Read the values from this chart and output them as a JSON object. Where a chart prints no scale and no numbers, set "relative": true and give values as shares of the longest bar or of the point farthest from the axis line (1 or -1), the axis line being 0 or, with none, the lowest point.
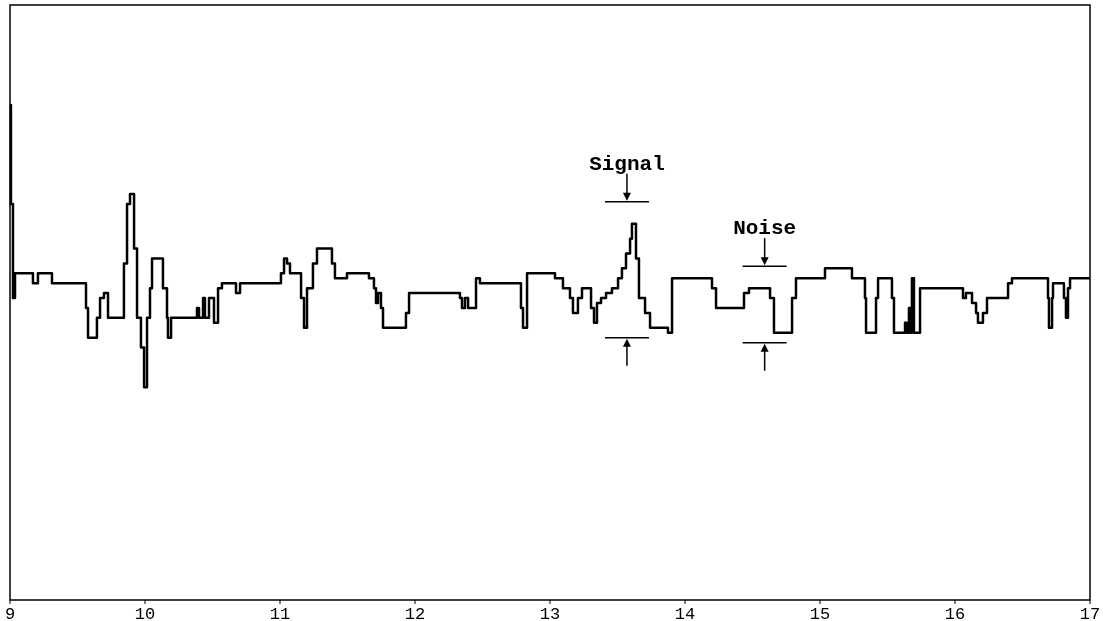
{
  "chart_data": {
    "type": "step",
    "relative": true,
    "xlim": [
      9,
      17
    ],
    "xticks": [
      9,
      10,
      11,
      12,
      13,
      14,
      15,
      16,
      17
    ],
    "grid": false,
    "marker": "none",
    "line_style": "solid",
    "annotations": [
      {
        "text": "Signal",
        "x": 13.57,
        "y": 0.76
      },
      {
        "text": "Noise",
        "x": 14.59,
        "y": 0.63
      }
    ],
    "series": [
      {
        "color": "#000000",
        "x": [
          9.0,
          9.007,
          9.022,
          9.037,
          9.148,
          9.17,
          9.207,
          9.296,
          9.311,
          9.563,
          9.578,
          9.644,
          9.667,
          9.696,
          9.726,
          9.844,
          9.867,
          9.889,
          9.919,
          9.941,
          9.97,
          9.993,
          10.015,
          10.037,
          10.052,
          10.133,
          10.163,
          10.17,
          10.193,
          10.385,
          10.4,
          10.43,
          10.444,
          10.474,
          10.511,
          10.541,
          10.57,
          10.674,
          10.704,
          11.007,
          11.03,
          11.052,
          11.074,
          11.156,
          11.178,
          11.2,
          11.244,
          11.274,
          11.319,
          11.385,
          11.407,
          11.467,
          11.496,
          11.659,
          11.696,
          11.711,
          11.726,
          11.748,
          11.763,
          11.933,
          11.956,
          12.333,
          12.348,
          12.37,
          12.393,
          12.452,
          12.481,
          12.785,
          12.8,
          12.83,
          13.037,
          13.096,
          13.148,
          13.17,
          13.207,
          13.237,
          13.304,
          13.326,
          13.348,
          13.378,
          13.4,
          13.415,
          13.459,
          13.504,
          13.533,
          13.563,
          13.593,
          13.607,
          13.637,
          13.659,
          13.704,
          13.741,
          13.874,
          13.904,
          14.2,
          14.23,
          14.437,
          14.474,
          14.63,
          14.659,
          14.793,
          14.822,
          15.037,
          15.237,
          15.333,
          15.341,
          15.415,
          15.43,
          15.533,
          15.548,
          15.615,
          15.63,
          15.644,
          15.659,
          15.674,
          15.681,
          15.696,
          15.741,
          16.059,
          16.081,
          16.126,
          16.156,
          16.17,
          16.207,
          16.237,
          16.393,
          16.422,
          16.689,
          16.696,
          16.719,
          16.726,
          16.807,
          16.822,
          16.837,
          16.852,
          17.0
        ],
        "values": [
          1.0,
          0.8,
          0.61,
          0.66,
          0.66,
          0.64,
          0.66,
          0.66,
          0.64,
          0.59,
          0.53,
          0.57,
          0.61,
          0.62,
          0.57,
          0.68,
          0.8,
          0.82,
          0.71,
          0.57,
          0.51,
          0.43,
          0.57,
          0.63,
          0.69,
          0.63,
          0.57,
          0.53,
          0.57,
          0.59,
          0.57,
          0.61,
          0.57,
          0.61,
          0.56,
          0.63,
          0.64,
          0.62,
          0.64,
          0.66,
          0.69,
          0.68,
          0.66,
          0.61,
          0.55,
          0.63,
          0.68,
          0.71,
          0.71,
          0.68,
          0.65,
          0.65,
          0.66,
          0.65,
          0.63,
          0.6,
          0.62,
          0.59,
          0.55,
          0.58,
          0.62,
          0.61,
          0.59,
          0.61,
          0.59,
          0.65,
          0.64,
          0.59,
          0.55,
          0.66,
          0.65,
          0.63,
          0.61,
          0.58,
          0.61,
          0.63,
          0.59,
          0.56,
          0.6,
          0.61,
          0.61,
          0.62,
          0.63,
          0.65,
          0.67,
          0.7,
          0.73,
          0.76,
          0.69,
          0.61,
          0.58,
          0.55,
          0.54,
          0.65,
          0.63,
          0.59,
          0.62,
          0.63,
          0.61,
          0.54,
          0.61,
          0.65,
          0.67,
          0.65,
          0.61,
          0.54,
          0.61,
          0.65,
          0.61,
          0.54,
          0.54,
          0.56,
          0.54,
          0.59,
          0.54,
          0.65,
          0.54,
          0.63,
          0.61,
          0.62,
          0.6,
          0.58,
          0.56,
          0.58,
          0.61,
          0.64,
          0.65,
          0.61,
          0.55,
          0.61,
          0.64,
          0.61,
          0.57,
          0.63,
          0.65,
          0.65
        ]
      }
    ]
  }
}
